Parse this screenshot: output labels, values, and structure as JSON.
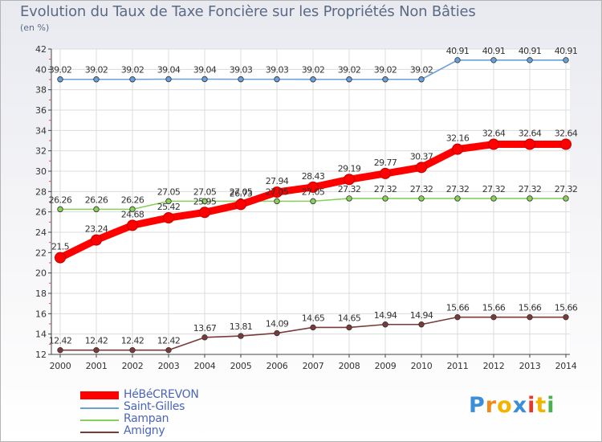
{
  "chart_data": {
    "type": "line",
    "title": "Evolution du Taux de Taxe Foncière sur les Propriétés Non Bâties",
    "ylabel": "(en %)",
    "ylim": [
      12,
      42
    ],
    "yticks": [
      "12",
      "14",
      "16",
      "18",
      "20",
      "22",
      "24",
      "26",
      "28",
      "30",
      "32",
      "34",
      "36",
      "38",
      "40",
      "42"
    ],
    "categories": [
      "2000",
      "2001",
      "2002",
      "2003",
      "2004",
      "2005",
      "2006",
      "2007",
      "2008",
      "2009",
      "2010",
      "2011",
      "2012",
      "2013",
      "2014"
    ],
    "series": [
      {
        "name": "HéBéCREVON",
        "color": "#ff0000",
        "values": [
          21.5,
          23.24,
          24.68,
          25.42,
          25.95,
          26.73,
          27.94,
          28.43,
          29.19,
          29.77,
          30.37,
          32.16,
          32.64,
          32.64,
          32.64
        ],
        "labels": [
          "21.5",
          "23.24",
          "24.68",
          "25.42",
          "25.95",
          "26.73",
          "27.94",
          "28.43",
          "29.19",
          "29.77",
          "30.37",
          "32.16",
          "32.64",
          "32.64",
          "32.64"
        ]
      },
      {
        "name": "Saint-Gilles",
        "color": "#6a9fd8",
        "values": [
          39.02,
          39.02,
          39.02,
          39.04,
          39.04,
          39.03,
          39.03,
          39.02,
          39.02,
          39.02,
          39.02,
          40.91,
          40.91,
          40.91,
          40.91
        ],
        "labels": [
          "39.02",
          "39.02",
          "39.02",
          "39.04",
          "39.04",
          "39.03",
          "39.03",
          "39.02",
          "39.02",
          "39.02",
          "39.02",
          "40.91",
          "40.91",
          "40.91",
          "40.91"
        ]
      },
      {
        "name": "Rampan",
        "color": "#88d05a",
        "values": [
          26.26,
          26.26,
          26.26,
          27.05,
          27.05,
          27.05,
          27.05,
          27.05,
          27.32,
          27.32,
          27.32,
          27.32,
          27.32,
          27.32,
          27.32
        ],
        "labels": [
          "26.26",
          "26.26",
          "26.26",
          "27.05",
          "27.05",
          "27.05",
          "27.05",
          "27.05",
          "27.32",
          "27.32",
          "27.32",
          "27.32",
          "27.32",
          "27.32",
          "27.32"
        ]
      },
      {
        "name": "Amigny",
        "color": "#7a3a3a",
        "values": [
          12.42,
          12.42,
          12.42,
          12.42,
          13.67,
          13.81,
          14.09,
          14.65,
          14.65,
          14.94,
          14.94,
          15.66,
          15.66,
          15.66,
          15.66
        ],
        "labels": [
          "12.42",
          "12.42",
          "12.42",
          "12.42",
          "13.67",
          "13.81",
          "14.09",
          "14.65",
          "14.65",
          "14.94",
          "14.94",
          "15.66",
          "15.66",
          "15.66",
          "15.66"
        ]
      }
    ],
    "legend_position": "bottom-left"
  },
  "logo": {
    "letters": [
      "P",
      "r",
      "o",
      "x",
      "i",
      "t",
      "i"
    ],
    "colors": [
      "#3a8fd8",
      "#f08a1c",
      "#f2b400",
      "#3a8fd8",
      "#e23a2a",
      "#f2b400",
      "#4caf50"
    ]
  }
}
